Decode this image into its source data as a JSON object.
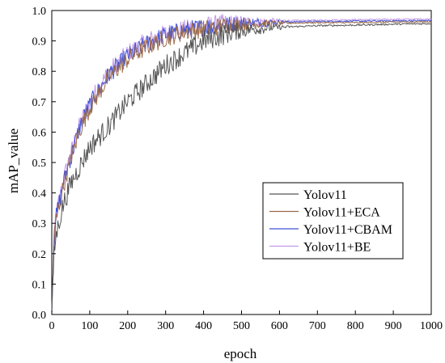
{
  "chart_data": {
    "type": "line",
    "title": "",
    "xlabel": "epoch",
    "ylabel": "mAP_value",
    "xlim": [
      0,
      1000
    ],
    "ylim": [
      0.0,
      1.0
    ],
    "x_ticks": [
      0,
      100,
      200,
      300,
      400,
      500,
      600,
      700,
      800,
      900,
      1000
    ],
    "y_ticks": [
      0.0,
      0.1,
      0.2,
      0.3,
      0.4,
      0.5,
      0.6,
      0.7,
      0.8,
      0.9,
      1.0
    ],
    "grid": false,
    "legend_position": "center-right",
    "series": [
      {
        "name": "Yolov11",
        "color": "#555555",
        "x": [
          0,
          5,
          10,
          20,
          30,
          50,
          75,
          100,
          150,
          200,
          250,
          300,
          350,
          400,
          450,
          500,
          600,
          700,
          800,
          900,
          1000
        ],
        "y": [
          0.0,
          0.18,
          0.25,
          0.31,
          0.36,
          0.43,
          0.49,
          0.55,
          0.62,
          0.7,
          0.76,
          0.82,
          0.86,
          0.9,
          0.92,
          0.935,
          0.945,
          0.95,
          0.952,
          0.955,
          0.957
        ]
      },
      {
        "name": "Yolov11+ECA",
        "color": "#9c6b4a",
        "x": [
          0,
          5,
          10,
          20,
          30,
          50,
          75,
          100,
          150,
          200,
          250,
          300,
          350,
          400,
          450,
          500,
          600,
          700,
          800,
          900,
          1000
        ],
        "y": [
          0.0,
          0.22,
          0.3,
          0.36,
          0.42,
          0.51,
          0.61,
          0.68,
          0.78,
          0.84,
          0.88,
          0.91,
          0.93,
          0.94,
          0.95,
          0.955,
          0.958,
          0.96,
          0.96,
          0.962,
          0.963
        ]
      },
      {
        "name": "Yolov11+CBAM",
        "color": "#3f51d6",
        "x": [
          0,
          5,
          10,
          20,
          30,
          50,
          75,
          100,
          150,
          200,
          250,
          300,
          350,
          400,
          450,
          500,
          600,
          700,
          800,
          900,
          1000
        ],
        "y": [
          0.0,
          0.22,
          0.31,
          0.37,
          0.43,
          0.52,
          0.62,
          0.69,
          0.79,
          0.85,
          0.89,
          0.92,
          0.935,
          0.945,
          0.952,
          0.958,
          0.962,
          0.964,
          0.965,
          0.966,
          0.967
        ]
      },
      {
        "name": "Yolov11+BE",
        "color": "#c39be8",
        "x": [
          0,
          5,
          10,
          20,
          30,
          50,
          75,
          100,
          150,
          200,
          250,
          300,
          350,
          400,
          450,
          500,
          600,
          700,
          800,
          900,
          1000
        ],
        "y": [
          0.0,
          0.23,
          0.32,
          0.38,
          0.44,
          0.53,
          0.63,
          0.7,
          0.8,
          0.86,
          0.9,
          0.925,
          0.94,
          0.95,
          0.958,
          0.962,
          0.966,
          0.968,
          0.97,
          0.971,
          0.972
        ]
      }
    ]
  }
}
